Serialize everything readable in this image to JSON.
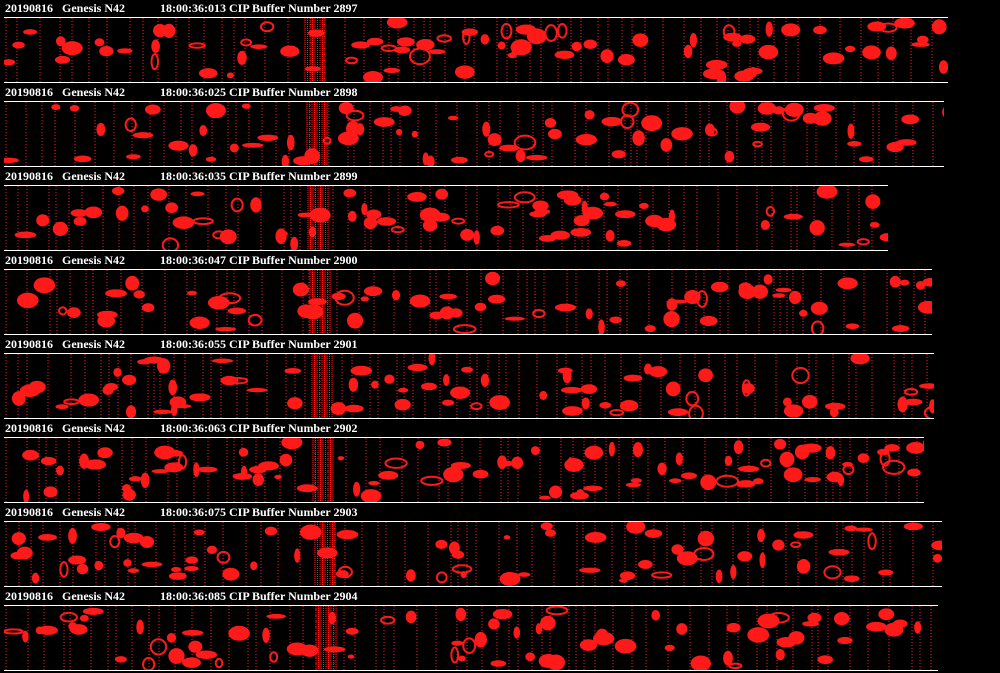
{
  "colors": {
    "background": "#000000",
    "particle": "#ff1a1a",
    "text": "#ffffff",
    "rule": "#ffffff"
  },
  "buffers": [
    {
      "date": "20190816",
      "probe": "Genesis N42",
      "time_label": "18:00:36:013 CIP Buffer Number 2897"
    },
    {
      "date": "20190816",
      "probe": "Genesis N42",
      "time_label": "18:00:36:025 CIP Buffer Number 2898"
    },
    {
      "date": "20190816",
      "probe": "Genesis N42",
      "time_label": "18:00:36:035 CIP Buffer Number 2899"
    },
    {
      "date": "20190816",
      "probe": "Genesis N42",
      "time_label": "18:00:36:047 CIP Buffer Number 2900"
    },
    {
      "date": "20190816",
      "probe": "Genesis N42",
      "time_label": "18:00:36:055 CIP Buffer Number 2901"
    },
    {
      "date": "20190816",
      "probe": "Genesis N42",
      "time_label": "18:00:36:063 CIP Buffer Number 2902"
    },
    {
      "date": "20190816",
      "probe": "Genesis N42",
      "time_label": "18:00:36:075 CIP Buffer Number 2903"
    },
    {
      "date": "20190816",
      "probe": "Genesis N42",
      "time_label": "18:00:36:085 CIP Buffer Number 2904"
    }
  ]
}
